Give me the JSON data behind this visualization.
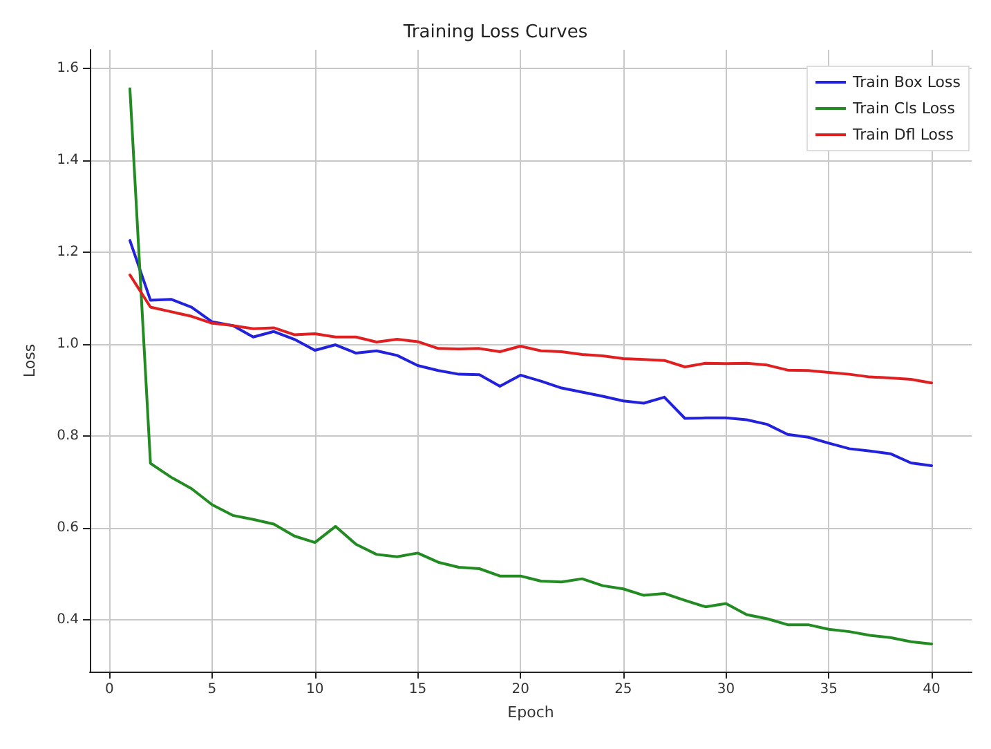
{
  "chart_data": {
    "type": "line",
    "title": "Training Loss Curves",
    "xlabel": "Epoch",
    "ylabel": "Loss",
    "x": [
      1,
      2,
      3,
      4,
      5,
      6,
      7,
      8,
      9,
      10,
      11,
      12,
      13,
      14,
      15,
      16,
      17,
      18,
      19,
      20,
      21,
      22,
      23,
      24,
      25,
      26,
      27,
      28,
      29,
      30,
      31,
      32,
      33,
      34,
      35,
      36,
      37,
      38,
      39,
      40
    ],
    "series": [
      {
        "name": "Train Box Loss",
        "color": "#2222dd",
        "values": [
          1.225,
          1.095,
          1.097,
          1.08,
          1.048,
          1.04,
          1.015,
          1.027,
          1.01,
          0.986,
          0.998,
          0.98,
          0.985,
          0.975,
          0.953,
          0.942,
          0.934,
          0.933,
          0.908,
          0.932,
          0.919,
          0.904,
          0.895,
          0.886,
          0.876,
          0.871,
          0.884,
          0.838,
          0.839,
          0.839,
          0.835,
          0.825,
          0.803,
          0.797,
          0.784,
          0.772,
          0.767,
          0.761,
          0.741,
          0.735
        ]
      },
      {
        "name": "Train Cls Loss",
        "color": "#228b22",
        "values": [
          1.555,
          0.74,
          0.71,
          0.685,
          0.65,
          0.627,
          0.618,
          0.608,
          0.582,
          0.568,
          0.603,
          0.564,
          0.542,
          0.537,
          0.545,
          0.525,
          0.514,
          0.511,
          0.495,
          0.495,
          0.484,
          0.482,
          0.489,
          0.474,
          0.467,
          0.453,
          0.457,
          0.442,
          0.428,
          0.435,
          0.411,
          0.402,
          0.389,
          0.389,
          0.379,
          0.374,
          0.366,
          0.361,
          0.352,
          0.347
        ]
      },
      {
        "name": "Train Dfl Loss",
        "color": "#e02020",
        "values": [
          1.15,
          1.08,
          1.07,
          1.06,
          1.045,
          1.04,
          1.033,
          1.035,
          1.02,
          1.022,
          1.015,
          1.015,
          1.004,
          1.01,
          1.005,
          0.99,
          0.989,
          0.99,
          0.983,
          0.995,
          0.985,
          0.983,
          0.977,
          0.974,
          0.968,
          0.966,
          0.964,
          0.95,
          0.958,
          0.957,
          0.958,
          0.954,
          0.943,
          0.942,
          0.938,
          0.934,
          0.928,
          0.926,
          0.923,
          0.915
        ]
      }
    ],
    "xlim": [
      -0.95,
      41.95
    ],
    "xticks": [
      0,
      5,
      10,
      15,
      20,
      25,
      30,
      35,
      40
    ],
    "ylim": [
      0.287,
      1.64
    ],
    "yticks": [
      0.4,
      0.6,
      0.8,
      {
        "value": 1,
        "label": "1.0"
      },
      1.2,
      1.4,
      1.6
    ],
    "grid": true,
    "legend": "top right",
    "marker": "none",
    "line_style": "solid"
  }
}
